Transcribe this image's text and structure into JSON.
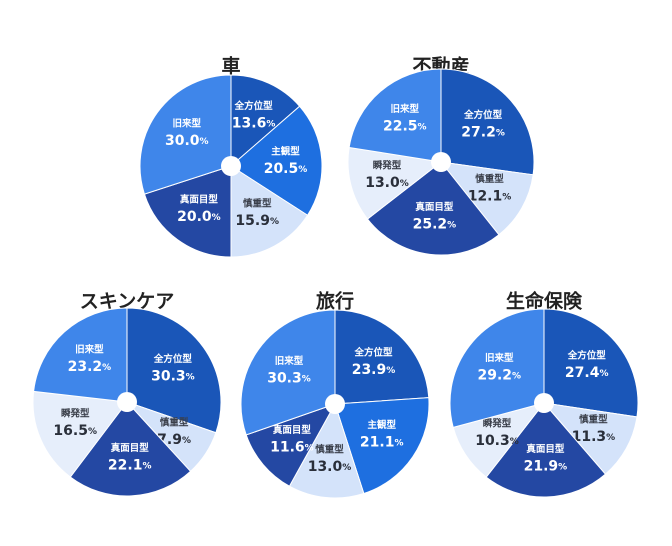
{
  "chart_data": [
    {
      "type": "pie",
      "title": "車",
      "colors": [
        "#1a56b8",
        "#1e6fe0",
        "#d4e3fa",
        "#2448a3",
        "#3f86ea"
      ],
      "slices": [
        {
          "label": "全方位型",
          "value": 13.6,
          "value_text": "13.6",
          "unit": "%"
        },
        {
          "label": "主観型",
          "value": 20.5,
          "value_text": "20.5",
          "unit": "%"
        },
        {
          "label": "慎重型",
          "value": 15.9,
          "value_text": "15.9",
          "unit": "%"
        },
        {
          "label": "真面目型",
          "value": 20.0,
          "value_text": "20.0",
          "unit": "%"
        },
        {
          "label": "旧来型",
          "value": 30.0,
          "value_text": "30.0",
          "unit": "%"
        }
      ]
    },
    {
      "type": "pie",
      "title": "不動産",
      "colors": [
        "#1a56b8",
        "#d4e3fa",
        "#2448a3",
        "#e6eefb",
        "#3f86ea"
      ],
      "slices": [
        {
          "label": "全方位型",
          "value": 27.2,
          "value_text": "27.2",
          "unit": "%"
        },
        {
          "label": "慎重型",
          "value": 12.1,
          "value_text": "12.1",
          "unit": "%"
        },
        {
          "label": "真面目型",
          "value": 25.2,
          "value_text": "25.2",
          "unit": "%"
        },
        {
          "label": "瞬発型",
          "value": 13.0,
          "value_text": "13.0",
          "unit": "%"
        },
        {
          "label": "旧来型",
          "value": 22.5,
          "value_text": "22.5",
          "unit": "%"
        }
      ]
    },
    {
      "type": "pie",
      "title": "スキンケア",
      "colors": [
        "#1a56b8",
        "#d4e3fa",
        "#2448a3",
        "#e6eefb",
        "#3f86ea"
      ],
      "slices": [
        {
          "label": "全方位型",
          "value": 30.3,
          "value_text": "30.3",
          "unit": "%"
        },
        {
          "label": "慎重型",
          "value": 7.9,
          "value_text": "7.9",
          "unit": "%"
        },
        {
          "label": "真面目型",
          "value": 22.1,
          "value_text": "22.1",
          "unit": "%"
        },
        {
          "label": "瞬発型",
          "value": 16.5,
          "value_text": "16.5",
          "unit": "%"
        },
        {
          "label": "旧来型",
          "value": 23.2,
          "value_text": "23.2",
          "unit": "%"
        }
      ]
    },
    {
      "type": "pie",
      "title": "旅行",
      "colors": [
        "#1a56b8",
        "#1e6fe0",
        "#d4e3fa",
        "#2448a3",
        "#3f86ea"
      ],
      "slices": [
        {
          "label": "全方位型",
          "value": 23.9,
          "value_text": "23.9",
          "unit": "%"
        },
        {
          "label": "主観型",
          "value": 21.1,
          "value_text": "21.1",
          "unit": "%"
        },
        {
          "label": "慎重型",
          "value": 13.0,
          "value_text": "13.0",
          "unit": "%"
        },
        {
          "label": "真面目型",
          "value": 11.6,
          "value_text": "11.6",
          "unit": "%"
        },
        {
          "label": "旧来型",
          "value": 30.3,
          "value_text": "30.3",
          "unit": "%"
        }
      ]
    },
    {
      "type": "pie",
      "title": "生命保険",
      "colors": [
        "#1a56b8",
        "#d4e3fa",
        "#2448a3",
        "#e6eefb",
        "#3f86ea"
      ],
      "slices": [
        {
          "label": "全方位型",
          "value": 27.4,
          "value_text": "27.4",
          "unit": "%"
        },
        {
          "label": "慎重型",
          "value": 11.3,
          "value_text": "11.3",
          "unit": "%"
        },
        {
          "label": "真面目型",
          "value": 21.9,
          "value_text": "21.9",
          "unit": "%"
        },
        {
          "label": "瞬発型",
          "value": 10.3,
          "value_text": "10.3",
          "unit": "%"
        },
        {
          "label": "旧来型",
          "value": 29.2,
          "value_text": "29.2",
          "unit": "%"
        }
      ]
    }
  ]
}
